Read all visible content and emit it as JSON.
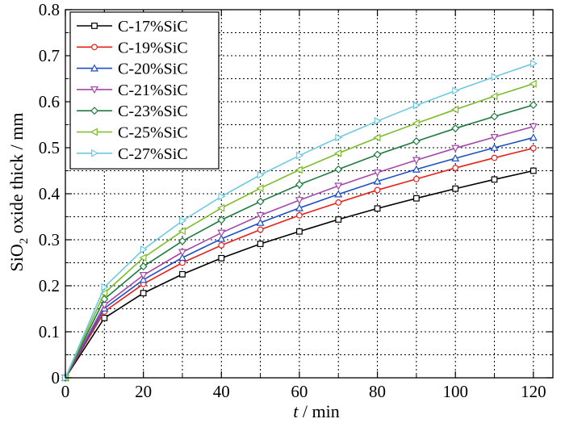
{
  "chart_data": {
    "type": "line",
    "title": "",
    "xlabel_italic": "t",
    "xlabel_rest": " / min",
    "ylabel_main": "SiO",
    "ylabel_sub": "2",
    "ylabel_rest": " oxide thick / mm",
    "xlim": [
      0,
      125
    ],
    "ylim": [
      0,
      0.8
    ],
    "xticks": [
      0,
      20,
      40,
      60,
      80,
      100,
      120
    ],
    "xtick_labels": [
      "0",
      "20",
      "40",
      "60",
      "80",
      "100",
      "120"
    ],
    "yticks": [
      0,
      0.1,
      0.2,
      0.3,
      0.4,
      0.5,
      0.6,
      0.7,
      0.8
    ],
    "ytick_labels": [
      "0",
      "0.1",
      "0.2",
      "0.3",
      "0.4",
      "0.5",
      "0.6",
      "0.7",
      "0.8"
    ],
    "x": [
      0,
      10,
      20,
      30,
      40,
      50,
      60,
      70,
      80,
      90,
      100,
      110,
      120
    ],
    "grid": true,
    "legend_position": "top-left",
    "series": [
      {
        "name": "C-17%SiC",
        "color": "#000000",
        "marker": "square",
        "values": [
          0,
          0.13,
          0.184,
          0.225,
          0.26,
          0.291,
          0.318,
          0.344,
          0.368,
          0.39,
          0.411,
          0.431,
          0.45
        ]
      },
      {
        "name": "C-19%SiC",
        "color": "#e8201a",
        "marker": "circle",
        "values": [
          0,
          0.144,
          0.204,
          0.25,
          0.288,
          0.322,
          0.353,
          0.381,
          0.408,
          0.432,
          0.456,
          0.478,
          0.499
        ]
      },
      {
        "name": "C-20%SiC",
        "color": "#1f4fc2",
        "marker": "triangle-up",
        "values": [
          0,
          0.151,
          0.213,
          0.261,
          0.302,
          0.337,
          0.369,
          0.399,
          0.427,
          0.453,
          0.477,
          0.5,
          0.522
        ]
      },
      {
        "name": "C-21%SiC",
        "color": "#a347a9",
        "marker": "triangle-down",
        "values": [
          0,
          0.158,
          0.223,
          0.273,
          0.315,
          0.353,
          0.386,
          0.417,
          0.446,
          0.473,
          0.499,
          0.523,
          0.546
        ]
      },
      {
        "name": "C-23%SiC",
        "color": "#1f7a3f",
        "marker": "diamond",
        "values": [
          0,
          0.171,
          0.242,
          0.297,
          0.343,
          0.383,
          0.42,
          0.453,
          0.485,
          0.514,
          0.542,
          0.568,
          0.593
        ]
      },
      {
        "name": "C-25%SiC",
        "color": "#7cbc2a",
        "marker": "triangle-left",
        "values": [
          0,
          0.184,
          0.261,
          0.319,
          0.369,
          0.412,
          0.452,
          0.488,
          0.522,
          0.553,
          0.583,
          0.612,
          0.639
        ]
      },
      {
        "name": "C-27%SiC",
        "color": "#6cc9e0",
        "marker": "triangle-right",
        "values": [
          0,
          0.197,
          0.279,
          0.341,
          0.394,
          0.441,
          0.483,
          0.522,
          0.558,
          0.592,
          0.624,
          0.654,
          0.683
        ]
      }
    ]
  }
}
